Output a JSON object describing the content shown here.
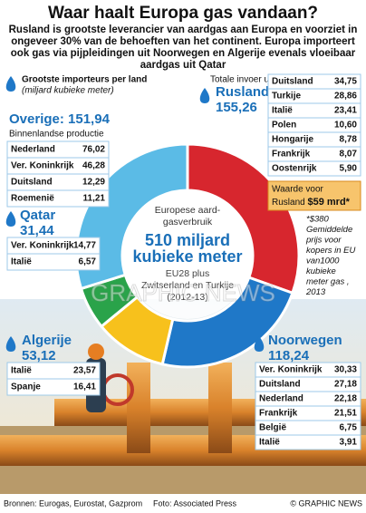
{
  "chart_data": {
    "type": "donut",
    "title": "Waar haalt Europa gas vandaan?",
    "subtitle": [
      "Rusland is grootste leverancier van aardgas aan Europa en voorziet in",
      "ongeveer 30% van de behoeften van het continent. Europa importeert",
      "ook gas via pijpleidingen uit Noorwegen en Algerije evenals vloeibaar",
      "aardgas uit Qatar"
    ],
    "categories": [
      "Rusland",
      "Noorwegen",
      "Algerije",
      "Qatar",
      "Overige:"
    ],
    "values": [
      155.26,
      118.24,
      53.12,
      31.44,
      151.94
    ],
    "value_labels": [
      "155,26",
      "118,24",
      "53,12",
      "31,44",
      "151,94"
    ],
    "colors": [
      "#d7262e",
      "#1f78c8",
      "#f7c11c",
      "#2aa34a",
      "#5bbbe6"
    ],
    "center_text": [
      "Europese aard-",
      "gasverbruik",
      "510 miljard",
      "kubieke meter",
      "EU28 plus",
      "Zwitserland en Turkije",
      "(2012-13)"
    ]
  },
  "legend_heading": "Grootste importeurs per land",
  "legend_units": "(miljard kubieke meter)",
  "total_label": "Totale invoer uit",
  "overige_note": "Binnenlandse productie",
  "tables": {
    "rusland": [
      [
        "Duitsland",
        "34,75"
      ],
      [
        "Turkije",
        "28,86"
      ],
      [
        "Italië",
        "23,41"
      ],
      [
        "Polen",
        "10,60"
      ],
      [
        "Hongarije",
        "8,78"
      ],
      [
        "Frankrijk",
        "8,07"
      ],
      [
        "Oostenrijk",
        "5,90"
      ]
    ],
    "overige": [
      [
        "Nederland",
        "76,02"
      ],
      [
        "Ver. Koninkrijk",
        "46,28"
      ],
      [
        "Duitsland",
        "12,29"
      ],
      [
        "Roemenië",
        "11,21"
      ]
    ],
    "qatar": [
      [
        "Ver. Koninkrijk",
        "14,77"
      ],
      [
        "Italië",
        "6,57"
      ]
    ],
    "algerije": [
      [
        "Italië",
        "23,57"
      ],
      [
        "Spanje",
        "16,41"
      ]
    ],
    "noorwegen": [
      [
        "Ver. Koninkrijk",
        "30,33"
      ],
      [
        "Duitsland",
        "27,18"
      ],
      [
        "Nederland",
        "22,18"
      ],
      [
        "Frankrijk",
        "21,51"
      ],
      [
        "België",
        "6,75"
      ],
      [
        "Italië",
        "3,91"
      ]
    ]
  },
  "value_box": [
    "Waarde voor",
    "Rusland",
    "$59 mrd*"
  ],
  "price_note": [
    "*$380",
    "Gemiddelde",
    "prijs voor",
    "kopers in EU",
    "van1000",
    "kubieke",
    "meter gas ,",
    "2013"
  ],
  "watermark": "GRAPHIC NEWS",
  "footer": {
    "sources": "Bronnen: Eurogas, Eurostat, Gazprom",
    "photo": "Foto: Associated Press",
    "credit": "© GRAPHIC NEWS"
  }
}
